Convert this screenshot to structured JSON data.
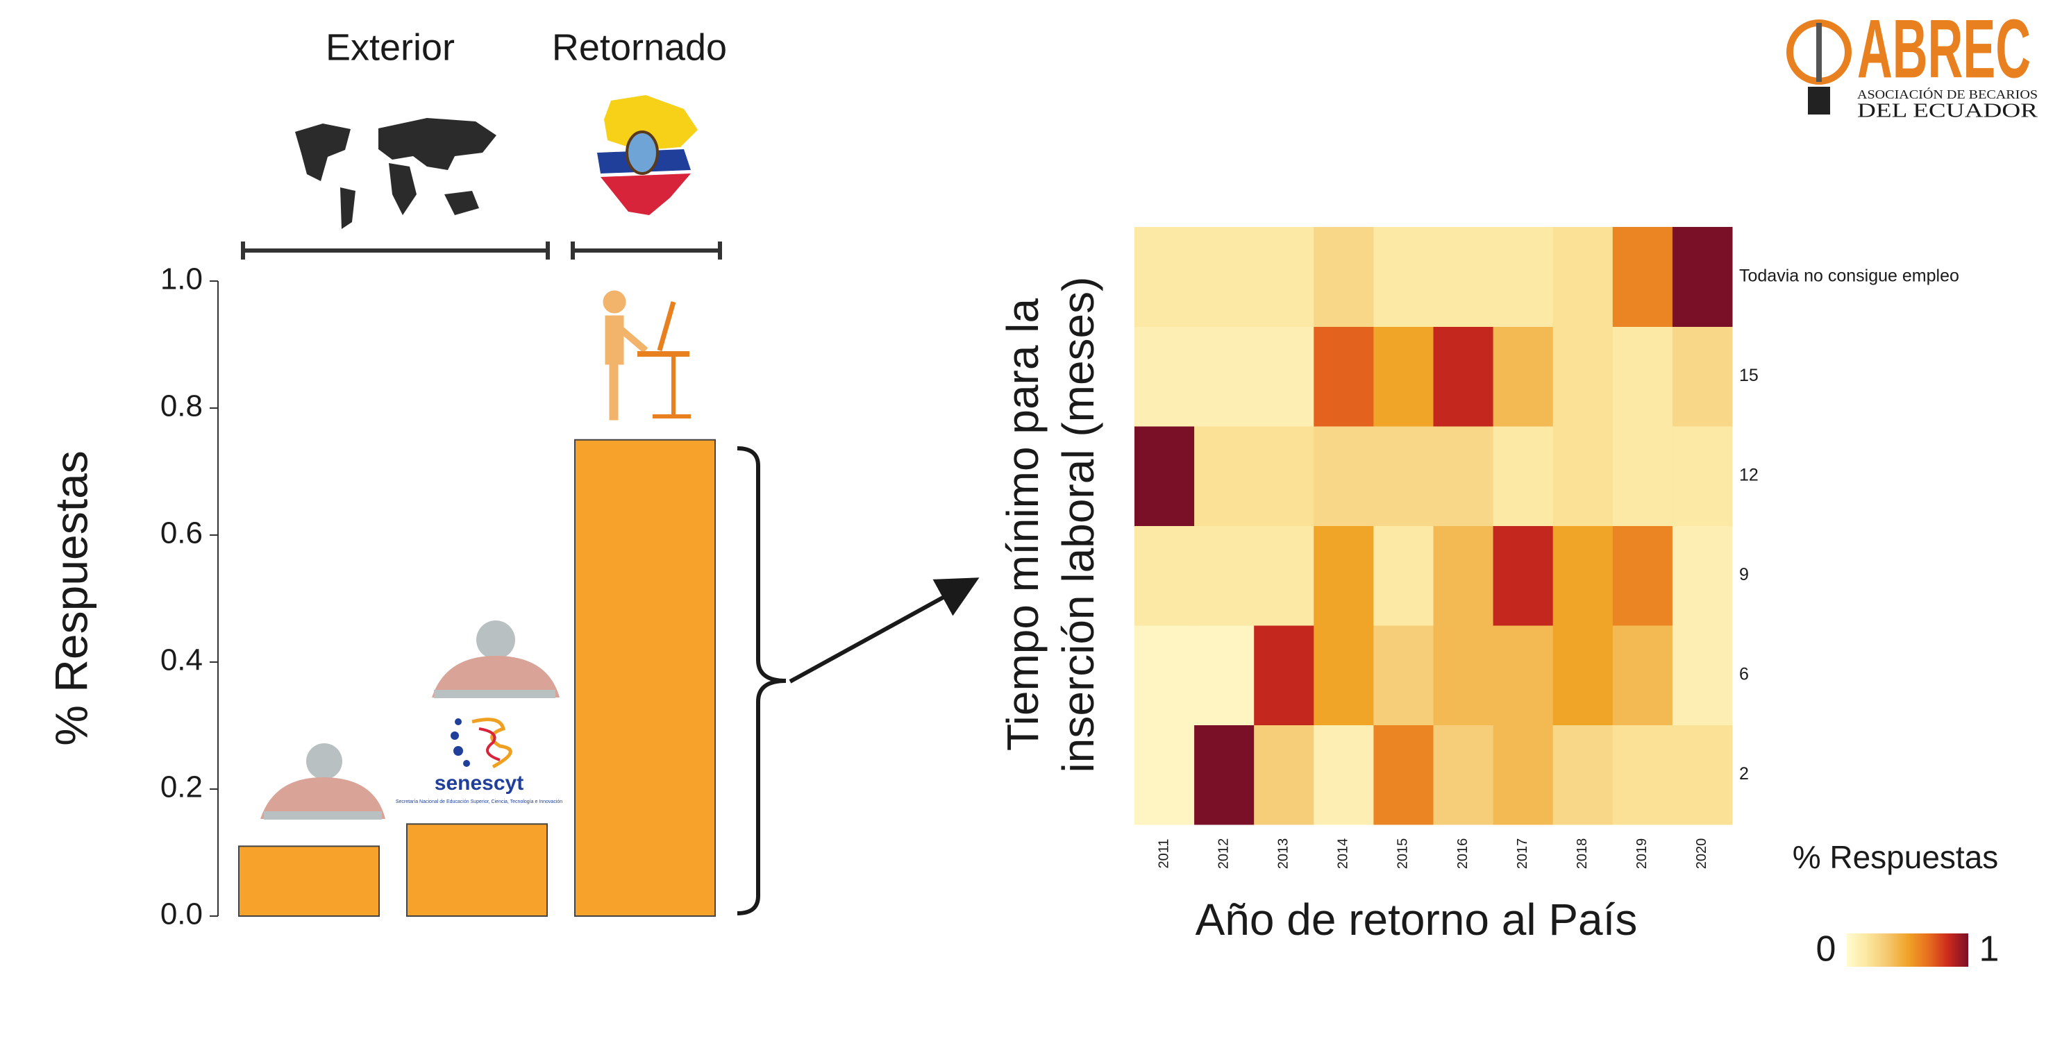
{
  "chart_data": [
    {
      "type": "bar",
      "annotations": [
        "Exterior",
        "Retornado"
      ],
      "ylabel": "% Respuestas",
      "categories": [
        null,
        null,
        null
      ],
      "values": [
        0.11,
        0.145,
        0.75
      ],
      "color": "#f7a22b",
      "ylim": [
        0,
        1
      ],
      "yticks": [
        {
          "value": 0,
          "label": "0.0"
        },
        0.2,
        0.4,
        0.6,
        0.8,
        {
          "value": 1,
          "label": "1.0"
        }
      ]
    },
    {
      "type": "heatmap",
      "xlabel": "Año de retorno al País",
      "ylabel": [
        "Tiempo mínimo para la",
        "inserción laboral (meses)"
      ],
      "x": [
        "2011",
        "2012",
        "2013",
        "2014",
        "2015",
        "2016",
        "2017",
        "2018",
        "2019",
        "2020"
      ],
      "y": [
        "2",
        "6",
        "9",
        "12",
        "15",
        "Todavia no consigue empleo"
      ],
      "values": [
        [
          0.05,
          1.0,
          0.3,
          0.1,
          0.6,
          0.3,
          0.4,
          0.25,
          0.2,
          0.2
        ],
        [
          0.05,
          0.05,
          0.85,
          0.5,
          0.3,
          0.4,
          0.4,
          0.5,
          0.4,
          0.1
        ],
        [
          0.15,
          0.15,
          0.15,
          0.5,
          0.15,
          0.4,
          0.85,
          0.5,
          0.6,
          0.1
        ],
        [
          1.0,
          0.2,
          0.2,
          0.25,
          0.25,
          0.25,
          0.15,
          0.2,
          0.15,
          0.15
        ],
        [
          0.1,
          0.1,
          0.1,
          0.7,
          0.5,
          0.85,
          0.4,
          0.2,
          0.15,
          0.25
        ],
        [
          0.15,
          0.15,
          0.15,
          0.25,
          0.15,
          0.15,
          0.15,
          0.2,
          0.6,
          1.0
        ]
      ],
      "colormap": [
        "#fffbd0",
        "#fbe7a0",
        "#f5c870",
        "#f0a428",
        "#e8701f",
        "#cc2a1c",
        "#7a1028"
      ],
      "clim": [
        0,
        1
      ],
      "colorbar": {
        "title": "% Respuestas",
        "ticks": [
          0,
          1
        ]
      }
    }
  ],
  "logos": {
    "abrec": {
      "name": "ABREC",
      "line1": "ASOCIACIÓN DE BECARIOS",
      "line2": "DEL ECUADOR"
    },
    "senescyt": {
      "name": "senescyt",
      "subtitle": "Secretaría Nacional de Educación Superior, Ciencia, Tecnología e Innovación"
    }
  }
}
